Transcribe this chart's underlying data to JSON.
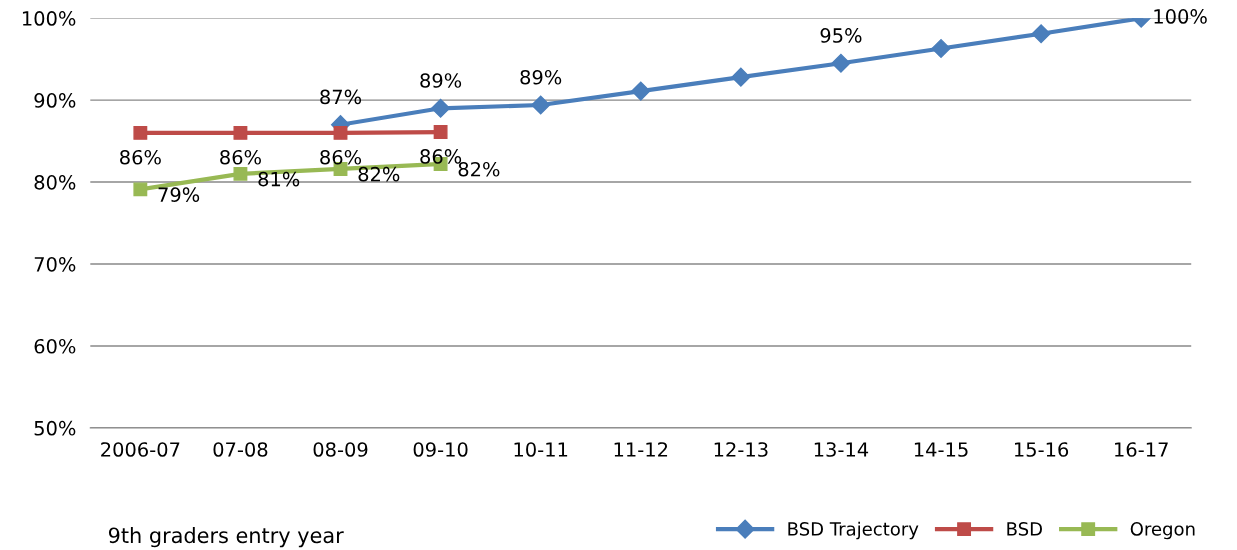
{
  "chart_data": {
    "type": "line",
    "xlabel": "9th graders entry year",
    "categories": [
      "2006-07",
      "07-08",
      "08-09",
      "09-10",
      "10-11",
      "11-12",
      "12-13",
      "13-14",
      "14-15",
      "15-16",
      "16-17"
    ],
    "series": [
      {
        "name": "BSD Trajectory",
        "color": "#4a7ebb",
        "marker": "diamond",
        "values": [
          null,
          null,
          87.0,
          89.0,
          89.4,
          91.1,
          92.8,
          94.5,
          96.3,
          98.1,
          100
        ],
        "value_labels": [
          null,
          null,
          "87%",
          "89%",
          "89%",
          null,
          null,
          "95%",
          null,
          null,
          "100%"
        ]
      },
      {
        "name": "BSD",
        "color": "#be4b48",
        "marker": "square",
        "values": [
          86.0,
          86.0,
          86.0,
          86.1,
          null,
          null,
          null,
          null,
          null,
          null,
          null
        ],
        "value_labels": [
          "86%",
          "86%",
          "86%",
          "86%",
          null,
          null,
          null,
          null,
          null,
          null,
          null
        ]
      },
      {
        "name": "Oregon",
        "color": "#98b954",
        "marker": "square",
        "values": [
          79.1,
          81.0,
          81.6,
          82.2,
          null,
          null,
          null,
          null,
          null,
          null,
          null
        ],
        "value_labels": [
          "79%",
          "81%",
          "82%",
          "82%",
          null,
          null,
          null,
          null,
          null,
          null,
          null
        ]
      }
    ],
    "ylim": [
      50,
      100
    ],
    "yticks": [
      {
        "value": 50,
        "label": "50%"
      },
      {
        "value": 60,
        "label": "60%"
      },
      {
        "value": 70,
        "label": "70%"
      },
      {
        "value": 80,
        "label": "80%"
      },
      {
        "value": 90,
        "label": "90%"
      },
      {
        "value": 100,
        "label": "100%"
      }
    ],
    "grid": "y",
    "legend": "bottom right"
  }
}
